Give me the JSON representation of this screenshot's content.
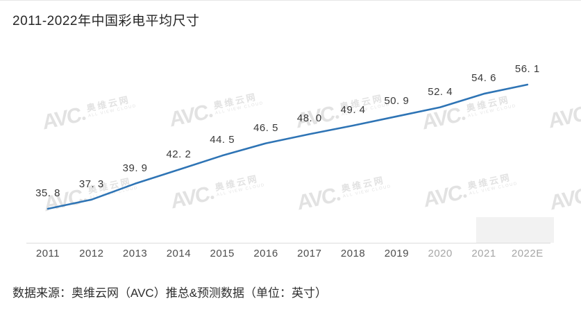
{
  "title": "2011-2022年中国彩电平均尺寸",
  "source_note": "数据来源：奥维云网（AVC）推总&预测数据（单位：英寸）",
  "watermark": {
    "logo": "AVC",
    "cn": "奥维云网",
    "en": "ALL VIEW CLOUD"
  },
  "colors": {
    "line": "#2e74b5",
    "axis": "#dcdcdc",
    "data_label": "#383838",
    "tick": "#4d4d4d",
    "tick_muted": "#a6a6a6",
    "watermark": "#cfcfcf"
  },
  "chart_data": {
    "type": "line",
    "title": "2011-2022年中国彩电平均尺寸",
    "categories": [
      "2011",
      "2012",
      "2013",
      "2014",
      "2015",
      "2016",
      "2017",
      "2018",
      "2019",
      "2020",
      "2021",
      "2022E"
    ],
    "values": [
      35.8,
      37.3,
      39.9,
      42.2,
      44.5,
      46.5,
      48.0,
      49.4,
      50.9,
      52.4,
      54.6,
      56.1
    ],
    "muted_categories": [
      "2020",
      "2021",
      "2022E"
    ],
    "unit": "英寸",
    "xlabel": "",
    "ylabel": "",
    "ylim": [
      34,
      58
    ],
    "grid": false,
    "legend": false,
    "data_labels": true,
    "axis_line": "bottom"
  }
}
